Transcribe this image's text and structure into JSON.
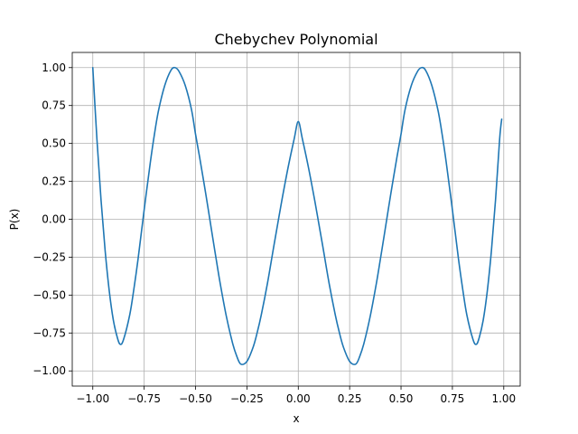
{
  "chart_data": {
    "type": "line",
    "title": "Chebychev Polynomial",
    "xlabel": "x",
    "ylabel": "P(x)",
    "xlim": [
      -1.1,
      1.08
    ],
    "ylim": [
      -1.1,
      1.1
    ],
    "x_ticks": [
      -1.0,
      -0.75,
      -0.5,
      -0.25,
      0.0,
      0.25,
      0.5,
      0.75,
      1.0
    ],
    "x_tick_labels": [
      "−1.00",
      "−0.75",
      "−0.50",
      "−0.25",
      "0.00",
      "0.25",
      "0.50",
      "0.75",
      "1.00"
    ],
    "y_ticks": [
      -1.0,
      -0.75,
      -0.5,
      -0.25,
      0.0,
      0.25,
      0.5,
      0.75,
      1.0
    ],
    "y_tick_labels": [
      "−1.00",
      "−0.75",
      "−0.50",
      "−0.25",
      "0.00",
      "0.25",
      "0.50",
      "0.75",
      "1.00"
    ],
    "grid": true,
    "series": [
      {
        "color": "#1f77b4",
        "x": [
          -1.0,
          -0.98,
          -0.96,
          -0.94,
          -0.92,
          -0.9,
          -0.88,
          -0.866,
          -0.85,
          -0.82,
          -0.8,
          -0.78,
          -0.75,
          -0.72,
          -0.7,
          -0.68,
          -0.65,
          -0.62,
          -0.6,
          -0.58,
          -0.55,
          -0.52,
          -0.5,
          -0.48,
          -0.45,
          -0.42,
          -0.4,
          -0.38,
          -0.35,
          -0.32,
          -0.3,
          -0.28,
          -0.25,
          -0.22,
          -0.2,
          -0.18,
          -0.15,
          -0.12,
          -0.1,
          -0.08,
          -0.05,
          -0.02,
          0.0,
          0.02,
          0.05,
          0.08,
          0.1,
          0.12,
          0.15,
          0.18,
          0.2,
          0.22,
          0.25,
          0.28,
          0.3,
          0.32,
          0.35,
          0.38,
          0.4,
          0.42,
          0.45,
          0.48,
          0.5,
          0.52,
          0.55,
          0.58,
          0.6,
          0.62,
          0.65,
          0.68,
          0.7,
          0.72,
          0.75,
          0.78,
          0.8,
          0.82,
          0.85,
          0.866,
          0.88,
          0.9,
          0.92,
          0.94,
          0.96,
          0.98,
          0.99
        ],
        "y": [
          1.0,
          0.5305,
          0.1288,
          -0.2064,
          -0.4718,
          -0.6651,
          -0.7834,
          -0.8249,
          -0.7917,
          -0.6286,
          -0.4592,
          -0.2653,
          0.0625,
          0.3753,
          0.5608,
          0.7181,
          0.8816,
          0.9817,
          1.0,
          0.9741,
          0.8816,
          0.7252,
          0.5608,
          0.4082,
          0.1653,
          -0.0908,
          -0.2591,
          -0.4231,
          -0.6401,
          -0.8155,
          -0.9007,
          -0.9548,
          -0.9375,
          -0.8444,
          -0.7473,
          -0.6302,
          -0.4222,
          -0.1845,
          -0.0298,
          0.1241,
          0.3385,
          0.5296,
          0.6442,
          0.5296,
          0.3385,
          0.1241,
          -0.0298,
          -0.1845,
          -0.4222,
          -0.6302,
          -0.7473,
          -0.8444,
          -0.9375,
          -0.9548,
          -0.9007,
          -0.8155,
          -0.6401,
          -0.4231,
          -0.2591,
          -0.0908,
          0.1653,
          0.4082,
          0.5608,
          0.7252,
          0.8816,
          0.9741,
          1.0,
          0.9817,
          0.8816,
          0.7181,
          0.5608,
          0.3753,
          0.0625,
          -0.2653,
          -0.4592,
          -0.6286,
          -0.7917,
          -0.8249,
          -0.7834,
          -0.6651,
          -0.4718,
          -0.2064,
          0.1288,
          0.5305,
          0.66
        ]
      }
    ]
  }
}
